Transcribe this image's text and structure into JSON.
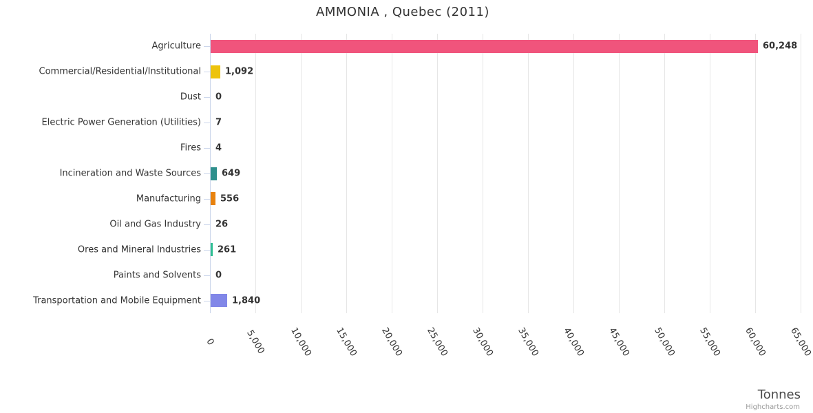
{
  "chart_data": {
    "type": "bar",
    "orientation": "horizontal",
    "title": "AMMONIA , Quebec (2011)",
    "xlabel": "Tonnes",
    "credits": "Highcharts.com",
    "xlim": [
      0,
      65000
    ],
    "tick_interval": 5000,
    "tick_labels": [
      "0",
      "5,000",
      "10,000",
      "15,000",
      "20,000",
      "25,000",
      "30,000",
      "35,000",
      "40,000",
      "45,000",
      "50,000",
      "55,000",
      "60,000",
      "65,000"
    ],
    "grid": true,
    "categories": [
      "Agriculture",
      "Commercial/Residential/Institutional",
      "Dust",
      "Electric Power Generation (Utilities)",
      "Fires",
      "Incineration and Waste Sources",
      "Manufacturing",
      "Oil and Gas Industry",
      "Ores and Mineral Industries",
      "Paints and Solvents",
      "Transportation and Mobile Equipment"
    ],
    "values": [
      60248,
      1092,
      0,
      7,
      4,
      649,
      556,
      26,
      261,
      0,
      1840
    ],
    "value_labels": [
      "60,248",
      "1,092",
      "0",
      "7",
      "4",
      "649",
      "556",
      "26",
      "261",
      "0",
      "1,840"
    ],
    "bar_colors": [
      "#f0547c",
      "#edc30c",
      "#7cb5ec",
      "#7cb5ec",
      "#7cb5ec",
      "#2e8f8c",
      "#e8820e",
      "#7cb5ec",
      "#2fbf92",
      "#7cb5ec",
      "#8187e8"
    ],
    "colors": {
      "grid": "#e6e6e6",
      "axis": "#ccd6eb",
      "label": "#333333",
      "title": "#333333",
      "xtitle": "#4a4a4a",
      "credits": "#999999"
    },
    "legend": "off"
  }
}
